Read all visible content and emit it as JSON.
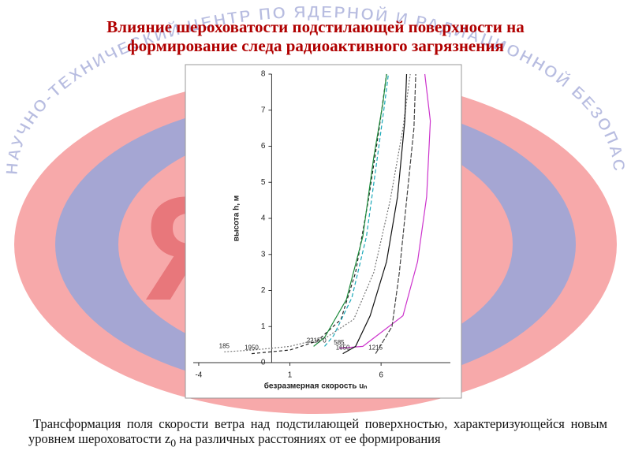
{
  "watermark": "НАУЧНО-ТЕХНИЧЕСКИЙ ЦЕНТР ПО ЯДЕРНОЙ И РАДИАЦИОННОЙ БЕЗОПАСНОСТИ",
  "logo_letter": "Я",
  "title": [
    "Влияние шероховатости подстилающей поверхности на",
    "формирование следа радиоактивного загрязнения"
  ],
  "caption": {
    "before": "Трансформация поля скорости ветра над подстилающей поверхностью, характеризующейся новым уровнем шероховатости z",
    "subscript": "0",
    "after": " на различных расстояниях от ее формирования"
  },
  "chart_data": {
    "type": "line",
    "x_label": "безразмерная скорость uₙ",
    "y_label": "высота h, м",
    "xlim": [
      -4.3,
      9.8
    ],
    "ylim": [
      0,
      8
    ],
    "xticks": [
      -4,
      1,
      6
    ],
    "yticks": [
      0,
      1,
      2,
      3,
      4,
      5,
      6,
      7,
      8
    ],
    "series": [
      {
        "name": "185",
        "color": "#777777",
        "dash": "2,2",
        "x": [
          -2.6,
          -1,
          1,
          3,
          4.5,
          5.6,
          6.5,
          7.2,
          7.6
        ],
        "values": [
          0.3,
          0.35,
          0.45,
          0.7,
          1.2,
          2.5,
          4.5,
          6.5,
          8
        ]
      },
      {
        "name": "1950",
        "color": "#222222",
        "dash": "4,3",
        "x": [
          -1.1,
          1,
          2.5,
          3.8,
          4.6,
          5.3,
          5.9,
          6.3
        ],
        "values": [
          0.25,
          0.35,
          0.6,
          1.2,
          2.5,
          4.5,
          6.5,
          8
        ]
      },
      {
        "name": "2215",
        "color": "#1a8a3a",
        "dash": "none",
        "x": [
          2.3,
          2.9,
          4.1,
          5.0,
          5.6,
          6.1,
          6.3
        ],
        "values": [
          0.45,
          0.7,
          1.75,
          3.5,
          5.7,
          7.2,
          8
        ]
      },
      {
        "name": "0",
        "color": "#1aa8b8",
        "dash": "5,3",
        "x": [
          2.9,
          3.4,
          4.4,
          5.2,
          5.8,
          6.2,
          6.4
        ],
        "values": [
          0.45,
          0.75,
          1.8,
          3.5,
          5.7,
          7.2,
          8
        ]
      },
      {
        "name": "585",
        "color": "#cc33cc",
        "dash": "none",
        "x": [
          3.7,
          5.0,
          7.2,
          8.0,
          8.5,
          8.7,
          8.4
        ],
        "values": [
          0.4,
          0.45,
          1.3,
          2.8,
          4.6,
          6.7,
          8
        ]
      },
      {
        "name": "1650",
        "color": "#111111",
        "dash": "none",
        "x": [
          3.9,
          4.6,
          5.4,
          6.3,
          6.9,
          7.3,
          7.4
        ],
        "values": [
          0.25,
          0.45,
          1.3,
          2.8,
          4.6,
          6.7,
          8
        ]
      },
      {
        "name": "1215",
        "color": "#444444",
        "dash": "6,2",
        "x": [
          5.7,
          6.6,
          7.0,
          7.4,
          7.8,
          7.9
        ],
        "values": [
          0.25,
          1,
          2.5,
          4.5,
          6.5,
          8
        ]
      }
    ]
  }
}
